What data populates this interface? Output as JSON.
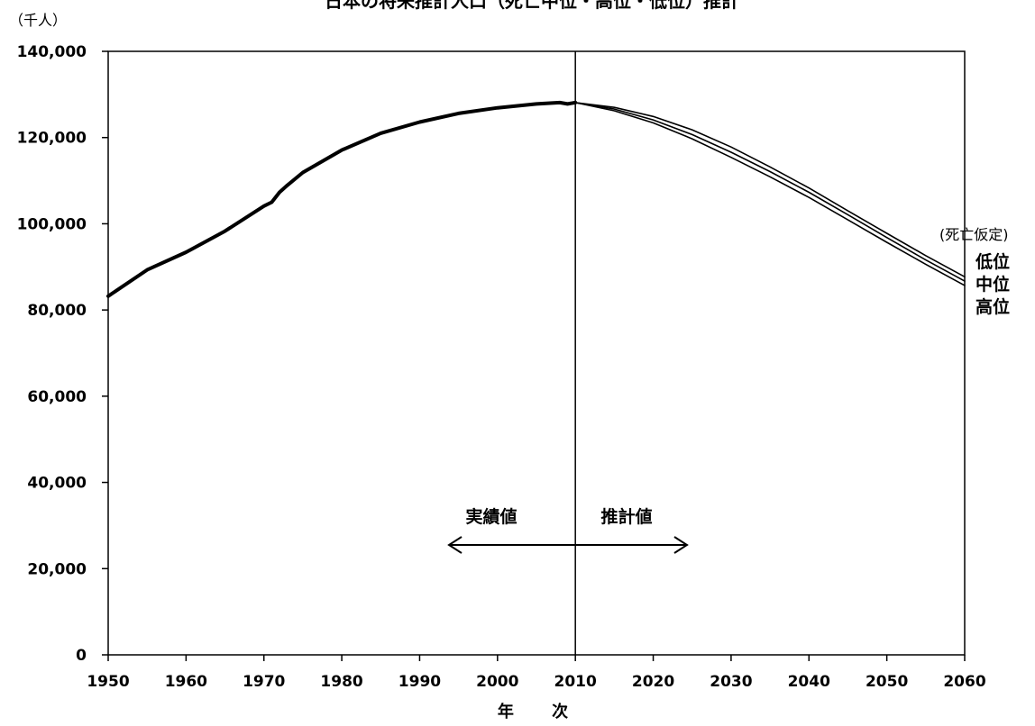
{
  "chart_data": {
    "type": "line",
    "title": "日本の将来推計人口（死亡中位・高位・低位）推計",
    "unit_label": "（千人）",
    "xlabel": "年 次",
    "ylabel": "",
    "xlim": [
      1950,
      2060
    ],
    "ylim": [
      0,
      140000
    ],
    "x_ticks": [
      "1950",
      "1960",
      "1970",
      "1980",
      "1990",
      "2000",
      "2010",
      "2020",
      "2030",
      "2040",
      "2050",
      "2060"
    ],
    "y_ticks": [
      "0",
      "20,000",
      "40,000",
      "60,000",
      "80,000",
      "100,000",
      "120,000",
      "140,000"
    ],
    "grid": false,
    "divider_year": 2010,
    "annotations": {
      "actual": "実績値",
      "projected": "推計値"
    },
    "legend": {
      "title": "(死亡仮定)",
      "entries": [
        "低位",
        "中位",
        "高位"
      ],
      "placement": "right"
    },
    "series": [
      {
        "name": "実績値",
        "x": [
          1950,
          1955,
          1960,
          1965,
          1970,
          1971,
          1972,
          1973,
          1975,
          1980,
          1985,
          1990,
          1995,
          2000,
          2005,
          2008,
          2009,
          2010
        ],
        "values": [
          83200,
          89300,
          93400,
          98300,
          104100,
          105000,
          107300,
          108900,
          111900,
          117100,
          121000,
          123600,
          125600,
          126900,
          127800,
          128100,
          127800,
          128100
        ]
      },
      {
        "name": "低位",
        "x": [
          2010,
          2015,
          2020,
          2025,
          2030,
          2035,
          2040,
          2045,
          2050,
          2055,
          2060
        ],
        "values": [
          128100,
          127000,
          124900,
          121800,
          117800,
          113200,
          108300,
          103000,
          97800,
          92600,
          87700
        ]
      },
      {
        "name": "中位",
        "x": [
          2010,
          2015,
          2020,
          2025,
          2030,
          2035,
          2040,
          2045,
          2050,
          2055,
          2060
        ],
        "values": [
          128100,
          126600,
          124100,
          120700,
          116600,
          112100,
          107300,
          102100,
          96800,
          91600,
          86700
        ]
      },
      {
        "name": "高位",
        "x": [
          2010,
          2015,
          2020,
          2025,
          2030,
          2035,
          2040,
          2045,
          2050,
          2055,
          2060
        ],
        "values": [
          128100,
          126200,
          123400,
          119700,
          115400,
          110900,
          106100,
          100900,
          95700,
          90600,
          85700
        ]
      }
    ]
  }
}
